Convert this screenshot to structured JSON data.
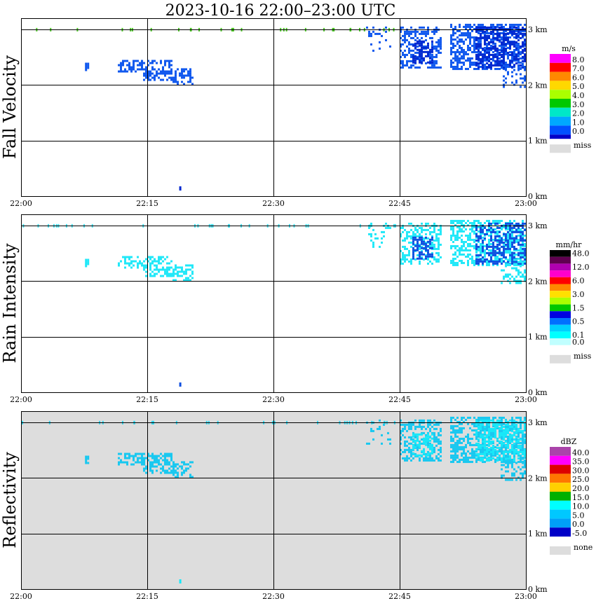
{
  "title": "2023-10-16   22:00–23:00 UTC",
  "colors": {
    "miss": "#dddddd",
    "grid": "#000000"
  },
  "chart_data": [
    {
      "type": "heatmap",
      "name": "Fall Velocity",
      "ylabel": "Fall Velocity",
      "xlim": [
        "22:00",
        "23:00"
      ],
      "ylim": [
        0,
        3.2
      ],
      "x_ticks": [
        "22:00",
        "22:15",
        "22:30",
        "22:45",
        "23:00"
      ],
      "y_ticks": [
        "0 km",
        "1 km",
        "2 km",
        "3 km"
      ],
      "background": "#ffffff",
      "legend": {
        "unit": "m/s",
        "levels": [
          {
            "label": "8.0",
            "color": "#ff00ff"
          },
          {
            "label": "7.0",
            "color": "#ff0000"
          },
          {
            "label": "6.0",
            "color": "#ff8800"
          },
          {
            "label": "5.0",
            "color": "#ffd800"
          },
          {
            "label": "4.0",
            "color": "#aaff00"
          },
          {
            "label": "3.0",
            "color": "#00c800"
          },
          {
            "label": "2.0",
            "color": "#00e8c8"
          },
          {
            "label": "1.0",
            "color": "#00a8ff"
          },
          {
            "label": "0.0",
            "color": "#0050ff"
          }
        ],
        "bottom_color": "#0000c8",
        "miss_label": "miss",
        "miss_color": "#dddddd"
      },
      "echo_color": "#1058ee",
      "echo_color2": "#0028d0",
      "top_band_color": "#48c820"
    },
    {
      "type": "heatmap",
      "name": "Rain Intensity",
      "ylabel": "Rain Intensity",
      "xlim": [
        "22:00",
        "23:00"
      ],
      "ylim": [
        0,
        3.2
      ],
      "x_ticks": [
        "22:00",
        "22:15",
        "22:30",
        "22:45",
        "23:00"
      ],
      "y_ticks": [
        "0 km",
        "1 km",
        "2 km",
        "3 km"
      ],
      "background": "#ffffff",
      "legend": {
        "unit": "mm/hr",
        "levels": [
          {
            "label": "48.0",
            "color": "#000000"
          },
          {
            "label": "",
            "color": "#600050"
          },
          {
            "label": "12.0",
            "color": "#b000b0"
          },
          {
            "label": "",
            "color": "#ff00cc"
          },
          {
            "label": "6.0",
            "color": "#ff0000"
          },
          {
            "label": "",
            "color": "#ff8800"
          },
          {
            "label": "3.0",
            "color": "#ffe000"
          },
          {
            "label": "",
            "color": "#aaff00"
          },
          {
            "label": "1.5",
            "color": "#00c800"
          },
          {
            "label": "",
            "color": "#0000e0"
          },
          {
            "label": "0.5",
            "color": "#0070ff"
          },
          {
            "label": "",
            "color": "#00d0ff"
          },
          {
            "label": "0.1",
            "color": "#00ffff"
          },
          {
            "label": "0.0",
            "color": "#c0ffff"
          }
        ],
        "bottom_color": "#ffffff",
        "miss_label": "miss",
        "miss_color": "#dddddd"
      },
      "echo_color": "#20e8f8",
      "echo_color2": "#1050e0",
      "top_band_color": "#40e0f0"
    },
    {
      "type": "heatmap",
      "name": "Reflectivity",
      "ylabel": "Reflectivity",
      "xlim": [
        "22:00",
        "23:00"
      ],
      "ylim": [
        0,
        3.2
      ],
      "x_ticks": [
        "22:00",
        "22:15",
        "22:30",
        "22:45",
        "23:00"
      ],
      "y_ticks": [
        "0 km",
        "1 km",
        "2 km",
        "3 km"
      ],
      "background": "#dddddd",
      "legend": {
        "unit": "dBZ",
        "levels": [
          {
            "label": "40.0",
            "color": "#aa44aa"
          },
          {
            "label": "35.0",
            "color": "#ff00ff"
          },
          {
            "label": "30.0",
            "color": "#dd0000"
          },
          {
            "label": "25.0",
            "color": "#ff7700"
          },
          {
            "label": "20.0",
            "color": "#ffd000"
          },
          {
            "label": "15.0",
            "color": "#00b000"
          },
          {
            "label": "10.0",
            "color": "#00ffff"
          },
          {
            "label": "5.0",
            "color": "#00c8ff"
          },
          {
            "label": "0.0",
            "color": "#00a0f8"
          },
          {
            "label": "-5.0",
            "color": "#0000c8"
          }
        ],
        "bottom_color": "#ffffff",
        "miss_label": "none",
        "miss_color": "#dddddd"
      },
      "echo_color": "#18c8f0",
      "echo_color2": "#18e8f8",
      "top_band_color": "#30d8f0"
    }
  ]
}
